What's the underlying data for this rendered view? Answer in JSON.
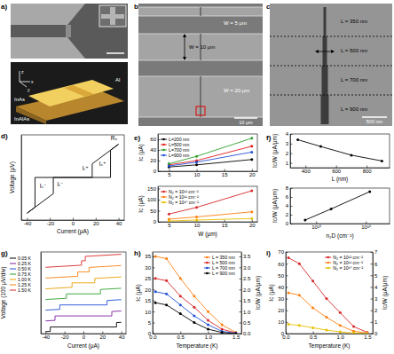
{
  "images": [
    {
      "title": "a)",
      "labels": [
        "InAlAs",
        "InAs",
        "Al"
      ],
      "axes": [
        "x",
        "y",
        "z"
      ]
    },
    {
      "title": "b)",
      "labels": [
        "W = 5 μm",
        "W = 10 μm",
        "W = 20 μm"
      ],
      "scale_bar": "10 μm"
    },
    {
      "title": "c)",
      "labels": [
        "L = 350 nm",
        "L = 500 nm",
        "L = 700 nm",
        "L = 900 nm"
      ],
      "scale_bar": "500 nm"
    }
  ],
  "chart_data": [
    {
      "type": "line",
      "title": "d)",
      "xlabel": "Current (μA)",
      "ylabel": "Voltage (μV)",
      "xlim": [
        -45,
        45
      ],
      "xticks": [
        -40,
        -20,
        0,
        20,
        40
      ],
      "ylim": [
        -50,
        50
      ],
      "tick_labels": "x",
      "series": [
        {
          "color": "#000000",
          "x": [
            -40,
            -17,
            -17,
            33,
            33,
            40
          ],
          "values": [
            -42,
            -19,
            0,
            0,
            32,
            39
          ]
        },
        {
          "color": "#000000",
          "x": [
            40,
            17,
            17,
            -33,
            -33,
            -40
          ],
          "values": [
            39,
            16,
            0,
            0,
            -35,
            -42
          ]
        }
      ],
      "annotations": [
        {
          "text": "Iₛ⁻",
          "x": -26,
          "y": -12
        },
        {
          "text": "Iᵣ⁻",
          "x": -11,
          "y": -10
        },
        {
          "text": "Iᵣ⁺",
          "x": 11,
          "y": 8
        },
        {
          "text": "Iₛ⁺",
          "x": 26,
          "y": 14
        },
        {
          "text": "Rₙ",
          "x": 36,
          "y": 44
        }
      ]
    },
    {
      "type": "line",
      "title": "e)",
      "ylabel": "Ic (μA)",
      "x": [
        5,
        10,
        20
      ],
      "xlim": [
        3,
        21
      ],
      "xticks": [
        5,
        10,
        15,
        20
      ],
      "ylim": [
        0,
        70
      ],
      "yticks": [
        0,
        20,
        40,
        60
      ],
      "legend": "top-left",
      "marker": "circle",
      "series": [
        {
          "name": "L=200 nm",
          "color": "#000000",
          "values": [
            8,
            12,
            22
          ]
        },
        {
          "name": "L=500 nm",
          "color": "#e41a1c",
          "values": [
            12,
            20,
            47
          ]
        },
        {
          "name": "L=700 nm",
          "color": "#2ca02c",
          "values": [
            14,
            28,
            62
          ]
        },
        {
          "name": "L=900 nm",
          "color": "#1f4fd6",
          "values": [
            10,
            17,
            36
          ]
        }
      ]
    },
    {
      "type": "line",
      "xlabel": "W (μm)",
      "ylabel": "Ic (μA)",
      "x": [
        5,
        10,
        20
      ],
      "xlim": [
        3,
        21
      ],
      "xticks": [
        5,
        10,
        15,
        20
      ],
      "ylim": [
        0,
        160
      ],
      "yticks": [
        0,
        50,
        100,
        150
      ],
      "legend": "top-left",
      "marker": "circle",
      "series": [
        {
          "name": "N₂ = 10¹² cm⁻²",
          "color": "#d62728",
          "values": [
            35,
            65,
            140
          ]
        },
        {
          "name": "N₂ = 10¹¹ cm⁻²",
          "color": "#ff7f0e",
          "values": [
            12,
            22,
            45
          ]
        },
        {
          "name": "N₂ = 10¹⁰ cm⁻²",
          "color": "#e8c000",
          "values": [
            4,
            8,
            15
          ]
        }
      ]
    },
    {
      "type": "line",
      "title": "f)",
      "xlabel": "L (nm)",
      "ylabel": "Ic/W (μA/μm)",
      "x": [
        350,
        500,
        700,
        900
      ],
      "xlim": [
        300,
        950
      ],
      "xticks": [
        400,
        600,
        800
      ],
      "ylim": [
        0.5,
        4
      ],
      "yticks": [
        1,
        2,
        3,
        4
      ],
      "marker": "circle",
      "series": [
        {
          "color": "#000000",
          "values": [
            3.4,
            2.7,
            1.8,
            1.2
          ]
        }
      ]
    },
    {
      "type": "line",
      "xlabel": "n₂D (cm⁻²)",
      "ylabel": "Ic/W (μA/μm)",
      "log": "x",
      "x": [
        600000000000000.0,
        2000000000000000.0,
        1.2e+16
      ],
      "xlim": [
        300000000000000.0,
        3e+16
      ],
      "xticks": [
        {
          "value": 1000000000000000.0,
          "label": "10¹⁵"
        },
        {
          "value": 1e+16,
          "label": "10¹⁶"
        }
      ],
      "ylim": [
        0,
        8
      ],
      "yticks": [
        0,
        2,
        4,
        6,
        8
      ],
      "marker": "circle",
      "series": [
        {
          "color": "#000000",
          "values": [
            0.8,
            3.3,
            7.2
          ]
        }
      ]
    },
    {
      "type": "line",
      "title": "g)",
      "xlabel": "Current (μA)",
      "ylabel": "Voltage (100 μV/div)",
      "xlim": [
        -45,
        45
      ],
      "xticks": [
        -40,
        -20,
        0,
        20,
        40
      ],
      "ylim": [
        -60,
        680
      ],
      "tick_labels": "x",
      "legend": "left",
      "series": [
        {
          "name": "0.05 K",
          "color": "#000000",
          "x": [
            -40,
            -35,
            -35,
            35,
            35,
            40
          ],
          "values": [
            -42.5,
            -40,
            0,
            0,
            40,
            42.5
          ]
        },
        {
          "name": "0.25 K",
          "color": "#7b1fa2",
          "x": [
            -40,
            -30,
            -30,
            30,
            30,
            40
          ],
          "values": [
            55,
            60,
            100,
            100,
            140,
            145
          ]
        },
        {
          "name": "0.50 K",
          "color": "#1f4fd6",
          "x": [
            -40,
            -25,
            -25,
            25,
            25,
            40
          ],
          "values": [
            152.5,
            160,
            200,
            200,
            240,
            247.5
          ]
        },
        {
          "name": "0.75 K",
          "color": "#2ca02c",
          "x": [
            -40,
            -18,
            -18,
            18,
            18,
            40
          ],
          "values": [
            249,
            260,
            300,
            300,
            340,
            351
          ]
        },
        {
          "name": "1.00 K",
          "color": "#e8a000",
          "x": [
            -40,
            -12,
            -12,
            12,
            12,
            40
          ],
          "values": [
            346,
            360,
            400,
            400,
            440,
            454
          ]
        },
        {
          "name": "1.25 K",
          "color": "#ff7f0e",
          "x": [
            -40,
            -6,
            -6,
            6,
            6,
            40
          ],
          "values": [
            443,
            460,
            500,
            500,
            540,
            557
          ]
        },
        {
          "name": "1.50 K",
          "color": "#d62728",
          "x": [
            -40,
            -2,
            -2,
            2,
            2,
            40
          ],
          "values": [
            541,
            560,
            600,
            600,
            640,
            659
          ]
        }
      ]
    },
    {
      "type": "line",
      "title": "h)",
      "xlabel": "Temperature (K)",
      "ylabel": "Ic (μA)",
      "y2label": "Ic/W (μA/μm)",
      "x": [
        0.05,
        0.25,
        0.5,
        0.75,
        1,
        1.25,
        1.5
      ],
      "xlim": [
        0,
        1.6
      ],
      "xticks": [
        {
          "value": 0,
          "label": "0.0"
        },
        0.5,
        {
          "value": 1,
          "label": "1.0"
        },
        1.5
      ],
      "ylim": [
        0,
        37
      ],
      "yticks": [
        0,
        5,
        10,
        15,
        20,
        25,
        30,
        35
      ],
      "y2lim": [
        0,
        3.7
      ],
      "y2ticks": [
        {
          "value": 0,
          "label": "0.0"
        },
        0.5,
        {
          "value": 1,
          "label": "1.0"
        },
        1.5,
        {
          "value": 2,
          "label": "2.0"
        },
        2.5,
        {
          "value": 3,
          "label": "3.0"
        },
        3.5
      ],
      "legend": "top-right",
      "marker": "circle",
      "series": [
        {
          "name": "L = 350 nm",
          "color": "#ff7f0e",
          "values": [
            35,
            34,
            25,
            17,
            10,
            4,
            0.5
          ]
        },
        {
          "name": "L = 500 nm",
          "color": "#d62728",
          "values": [
            25,
            24,
            17,
            12,
            6,
            2,
            0.3
          ]
        },
        {
          "name": "L = 700 nm",
          "color": "#1f4fd6",
          "values": [
            19,
            18,
            13,
            8,
            4,
            1,
            0.2
          ]
        },
        {
          "name": "L = 900 nm",
          "color": "#000000",
          "values": [
            14,
            13,
            9,
            5,
            2,
            0.5,
            0
          ]
        }
      ]
    },
    {
      "type": "line",
      "title": "i)",
      "xlabel": "Temperature (K)",
      "ylabel": "Ic (μA)",
      "y2label": "Ic/W (μA/μm)",
      "x": [
        0.05,
        0.25,
        0.5,
        0.75,
        1,
        1.25,
        1.5
      ],
      "xlim": [
        0,
        1.6
      ],
      "xticks": [
        {
          "value": 0,
          "label": "0.0"
        },
        0.5,
        {
          "value": 1,
          "label": "1.0"
        },
        1.5
      ],
      "ylim": [
        0,
        70
      ],
      "yticks": [
        0,
        10,
        20,
        30,
        40,
        50,
        60,
        70
      ],
      "y2lim": [
        0,
        7
      ],
      "y2ticks": [
        0,
        1,
        2,
        3,
        4,
        5,
        6,
        7
      ],
      "legend": "top-right",
      "marker": "circle",
      "series": [
        {
          "name": "N₂ = 10¹² cm⁻²",
          "color": "#d62728",
          "values": [
            65,
            60,
            45,
            30,
            18,
            6,
            1
          ]
        },
        {
          "name": "N₂ = 10¹¹ cm⁻²",
          "color": "#ff7f0e",
          "values": [
            35,
            33,
            22,
            14,
            7,
            2,
            0.5
          ]
        },
        {
          "name": "N₂ = 10¹⁰ cm⁻²",
          "color": "#e8c000",
          "values": [
            8,
            7,
            5,
            3,
            1.5,
            0.5,
            0
          ]
        }
      ]
    }
  ]
}
